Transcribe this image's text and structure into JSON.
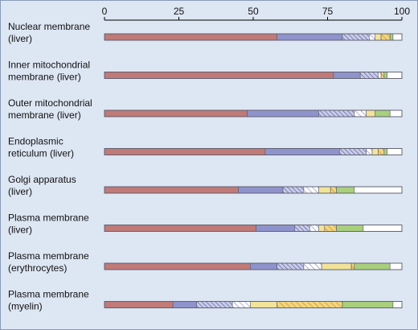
{
  "colors": {
    "background": "#dde6f3",
    "bar_outline": "#5a5a6a",
    "axis": "#000000",
    "segments": {
      "1": "#c07a78",
      "2": "#8f93cc",
      "3": "#c9cce6",
      "4": "#ffffff",
      "5": "#f2e39a",
      "6": "#e7c65e",
      "7": "#a9cf7c",
      "8": "#ffffff"
    }
  },
  "chart_data": {
    "type": "bar",
    "orientation": "horizontal",
    "stacked": true,
    "title": "",
    "xlabel": "",
    "ylabel": "",
    "xlim": [
      0,
      100
    ],
    "xticks": [
      0,
      25,
      50,
      75,
      100
    ],
    "axis_position": "top",
    "grid": false,
    "legend": "none",
    "categories": [
      [
        "Nuclear membrane",
        "(liver)"
      ],
      [
        "Inner mitochondrial",
        "membrane (liver)"
      ],
      [
        "Outer mitochondrial",
        "membrane (liver)"
      ],
      [
        "Endoplasmic",
        "reticulum (liver)"
      ],
      [
        "Golgi apparatus",
        "(liver)"
      ],
      [
        "Plasma membrane",
        "(liver)"
      ],
      [
        "Plasma membrane",
        "(erythrocytes)"
      ],
      [
        "Plasma membrane",
        "(myelin)"
      ]
    ],
    "segment_styles": [
      "solid",
      "solid",
      "hatched",
      "hatched",
      "solid",
      "hatched",
      "solid",
      "solid"
    ],
    "series": [
      {
        "values": [
          58,
          77,
          48,
          54,
          45,
          51,
          49,
          23
        ]
      },
      {
        "values": [
          22,
          9,
          24,
          25,
          15,
          13,
          9,
          8
        ]
      },
      {
        "values": [
          9,
          6,
          12,
          9,
          7,
          5,
          9,
          12
        ]
      },
      {
        "values": [
          2,
          1,
          4,
          2,
          5,
          3,
          6,
          6
        ]
      },
      {
        "values": [
          2,
          0,
          3,
          2,
          4,
          2,
          10,
          9
        ]
      },
      {
        "values": [
          3,
          1,
          0,
          2,
          2,
          4,
          1,
          22
        ]
      },
      {
        "values": [
          1,
          1,
          5,
          1,
          6,
          9,
          12,
          17
        ]
      },
      {
        "values": [
          3,
          5,
          4,
          5,
          16,
          13,
          4,
          3
        ]
      }
    ]
  }
}
